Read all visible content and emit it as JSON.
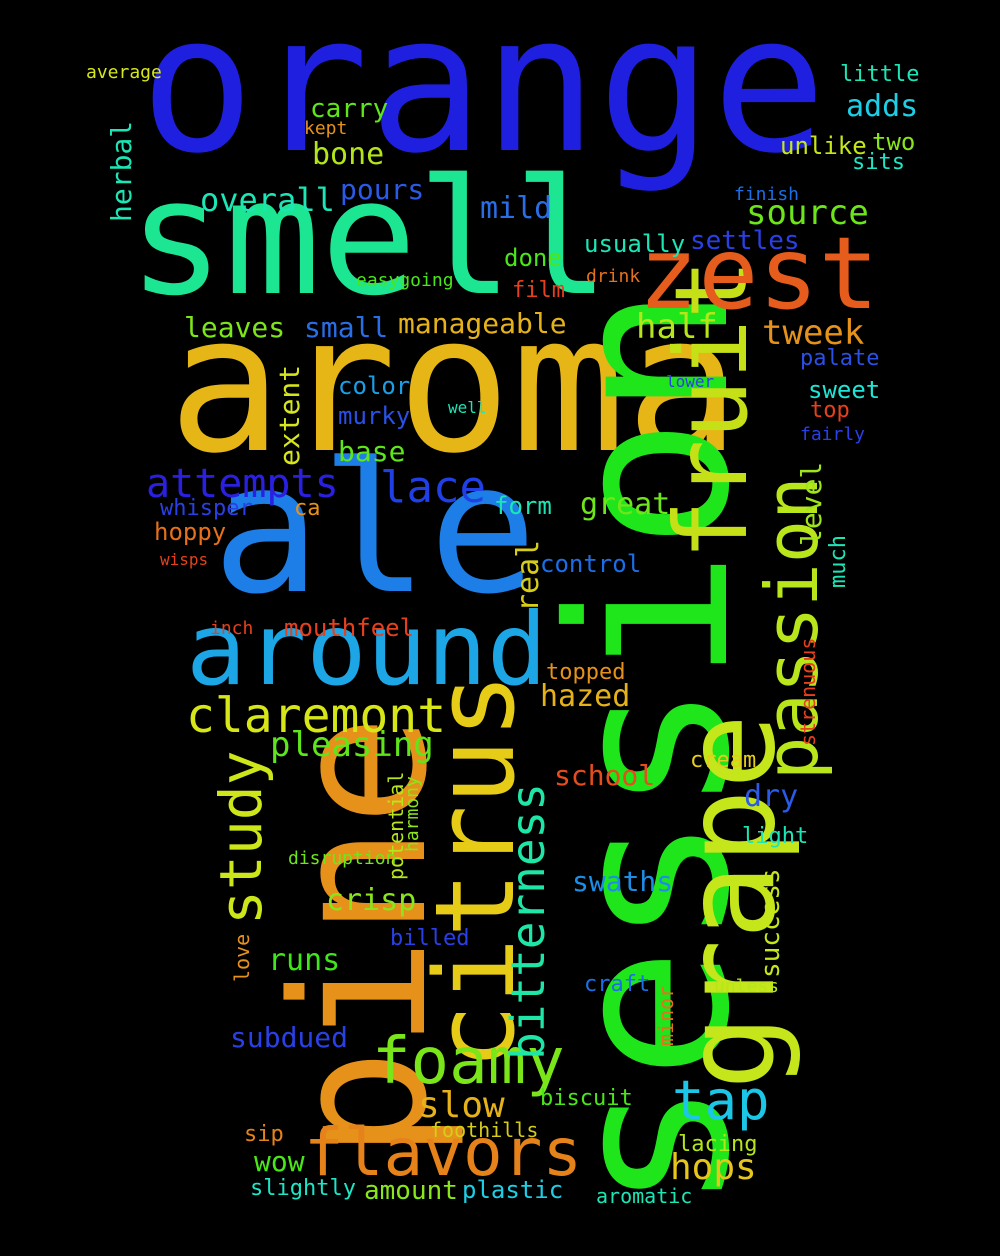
{
  "words": [
    {
      "text": "orange",
      "color": "#1f1fe0"
    },
    {
      "text": "smell",
      "color": "#1de693"
    },
    {
      "text": "aroma",
      "color": "#e6b617"
    },
    {
      "text": "ale",
      "color": "#1c7ee6"
    },
    {
      "text": "session",
      "color": "#1ee61a"
    },
    {
      "text": "pine",
      "color": "#e6921a"
    },
    {
      "text": "citrus",
      "color": "#e6cc17"
    },
    {
      "text": "grape",
      "color": "#c5e61a"
    },
    {
      "text": "fruit",
      "color": "#c6e017"
    },
    {
      "text": "passion",
      "color": "#b8e61a"
    },
    {
      "text": "around",
      "color": "#1ca6e6"
    },
    {
      "text": "zest",
      "color": "#e65c1c"
    },
    {
      "text": "flavors",
      "color": "#e6821a"
    },
    {
      "text": "foamy",
      "color": "#7ae61a"
    },
    {
      "text": "bitterness",
      "color": "#1de6a6"
    },
    {
      "text": "study",
      "color": "#cce61a"
    },
    {
      "text": "claremont",
      "color": "#d6e617"
    },
    {
      "text": "tap",
      "color": "#1cc6e6"
    },
    {
      "text": "lace",
      "color": "#2040e6"
    },
    {
      "text": "attempts",
      "color": "#2a20e0"
    },
    {
      "text": "slow",
      "color": "#e6b21a"
    },
    {
      "text": "hops",
      "color": "#e6c61a"
    },
    {
      "text": "pleasing",
      "color": "#5ee61a"
    },
    {
      "text": "source",
      "color": "#6ce61a"
    },
    {
      "text": "tweek",
      "color": "#e6921a"
    },
    {
      "text": "half",
      "color": "#b6e61a"
    },
    {
      "text": "overall",
      "color": "#1de6b6"
    },
    {
      "text": "bone",
      "color": "#b2e61a"
    },
    {
      "text": "mild",
      "color": "#2a6ee6"
    },
    {
      "text": "manageable",
      "color": "#e6b21a"
    },
    {
      "text": "leaves",
      "color": "#7ce61a"
    },
    {
      "text": "small",
      "color": "#2a6ee6"
    },
    {
      "text": "great",
      "color": "#6ee61a"
    },
    {
      "text": "extent",
      "color": "#d6e61a"
    },
    {
      "text": "base",
      "color": "#5ee61a"
    },
    {
      "text": "hazed",
      "color": "#e6b21a"
    },
    {
      "text": "crisp",
      "color": "#8ae61a"
    },
    {
      "text": "runs",
      "color": "#3ee61a"
    },
    {
      "text": "dry",
      "color": "#2a5ae6"
    },
    {
      "text": "adds",
      "color": "#1ccfe6"
    },
    {
      "text": "pours",
      "color": "#2a5ae6"
    },
    {
      "text": "carry",
      "color": "#5ee61a"
    },
    {
      "text": "settles",
      "color": "#2a40e6"
    },
    {
      "text": "school",
      "color": "#e64c1c"
    },
    {
      "text": "swaths",
      "color": "#1c8ee6"
    },
    {
      "text": "real",
      "color": "#d6cc1a"
    },
    {
      "text": "herbal",
      "color": "#1de6b6"
    },
    {
      "text": "level",
      "color": "#9ee61a"
    },
    {
      "text": "success",
      "color": "#c6e61a"
    },
    {
      "text": "subdued",
      "color": "#2a40e6"
    },
    {
      "text": "wow",
      "color": "#4ae61a"
    },
    {
      "text": "amount",
      "color": "#8ae61a"
    },
    {
      "text": "plastic",
      "color": "#1ccfe6"
    },
    {
      "text": "mouthfeel",
      "color": "#e6401c"
    },
    {
      "text": "control",
      "color": "#1c6ee6"
    },
    {
      "text": "form",
      "color": "#1de6b6"
    },
    {
      "text": "color",
      "color": "#1c9ee6"
    },
    {
      "text": "murky",
      "color": "#2a50e6"
    },
    {
      "text": "done",
      "color": "#4ae61a"
    },
    {
      "text": "usually",
      "color": "#1de6b6"
    },
    {
      "text": "unlike",
      "color": "#c6e61a"
    },
    {
      "text": "little",
      "color": "#1de6b6"
    },
    {
      "text": "two",
      "color": "#8ae61a"
    },
    {
      "text": "sits",
      "color": "#1de6c6"
    },
    {
      "text": "sweet",
      "color": "#1de6d6"
    },
    {
      "text": "top",
      "color": "#e6401c"
    },
    {
      "text": "palate",
      "color": "#2a50e6"
    },
    {
      "text": "fairly",
      "color": "#2a40e6"
    },
    {
      "text": "hoppy",
      "color": "#e6701c"
    },
    {
      "text": "whisper",
      "color": "#2a40e6"
    },
    {
      "text": "ca",
      "color": "#e6921a"
    },
    {
      "text": "film",
      "color": "#e6401c"
    },
    {
      "text": "drink",
      "color": "#e6701c"
    },
    {
      "text": "easygoing",
      "color": "#4ae61a"
    },
    {
      "text": "finish",
      "color": "#1c6ee6"
    },
    {
      "text": "kept",
      "color": "#e6921a"
    },
    {
      "text": "average",
      "color": "#d6e61a"
    },
    {
      "text": "lower",
      "color": "#2a40e6"
    },
    {
      "text": "well",
      "color": "#1de6b6"
    },
    {
      "text": "wisps",
      "color": "#e6401c"
    },
    {
      "text": "inch",
      "color": "#e6401c"
    },
    {
      "text": "topped",
      "color": "#e6921a"
    },
    {
      "text": "cream",
      "color": "#e6cc1a"
    },
    {
      "text": "light",
      "color": "#1de6b6"
    },
    {
      "text": "much",
      "color": "#1de6b6"
    },
    {
      "text": "strenuous",
      "color": "#e6401c"
    },
    {
      "text": "potential",
      "color": "#b6e61a"
    },
    {
      "text": "harmony",
      "color": "#8ae61a"
    },
    {
      "text": "disruption",
      "color": "#6ee61a"
    },
    {
      "text": "billed",
      "color": "#2a40e6"
    },
    {
      "text": "love",
      "color": "#e6921a"
    },
    {
      "text": "craft",
      "color": "#1c6ee6"
    },
    {
      "text": "unless",
      "color": "#b6e61a"
    },
    {
      "text": "minor",
      "color": "#e6701c"
    },
    {
      "text": "biscuit",
      "color": "#4ae61a"
    },
    {
      "text": "foothills",
      "color": "#d6cc1a"
    },
    {
      "text": "lacing",
      "color": "#b6e61a"
    },
    {
      "text": "sip",
      "color": "#e6821a"
    },
    {
      "text": "slightly",
      "color": "#1de6c6"
    },
    {
      "text": "aromatic",
      "color": "#1de6b6"
    }
  ]
}
